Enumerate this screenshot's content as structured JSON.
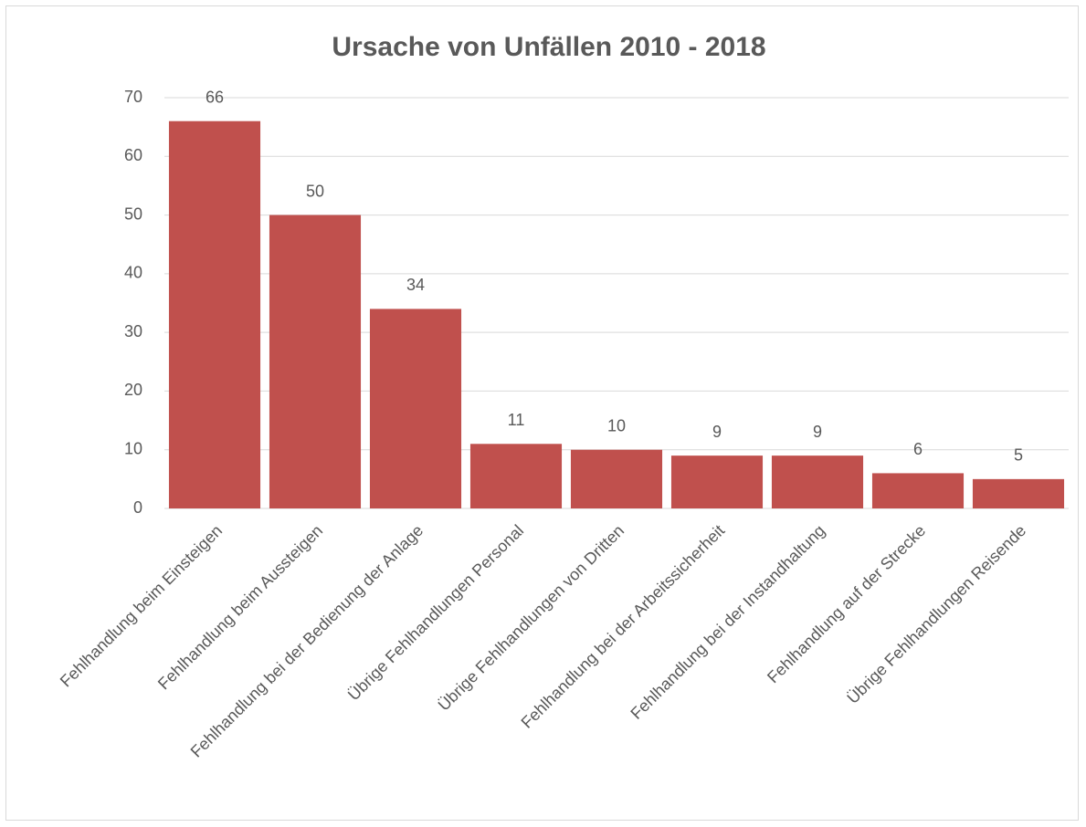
{
  "chart_data": {
    "type": "bar",
    "title": "Ursache von Unfällen 2010 - 2018",
    "categories": [
      "Fehlhandlung beim Einsteigen",
      "Fehlhandlung beim Aussteigen",
      "Fehlhandlung bei der Bedienung der Anlage",
      "Übrige Fehlhandlungen Personal",
      "Übrige Fehlhandlungen von Dritten",
      "Fehlhandlung bei der Arbeitssicherheit",
      "Fehlhandlung bei der Instandhaltung",
      "Fehlhandlung auf der Strecke",
      "Übrige Fehlhandlungen Reisende"
    ],
    "values": [
      66,
      50,
      34,
      11,
      10,
      9,
      9,
      6,
      5
    ],
    "color": "#c0504d",
    "ylim": [
      0,
      70
    ],
    "yticks": [
      0,
      10,
      20,
      30,
      40,
      50,
      60,
      70
    ],
    "grid": true
  }
}
